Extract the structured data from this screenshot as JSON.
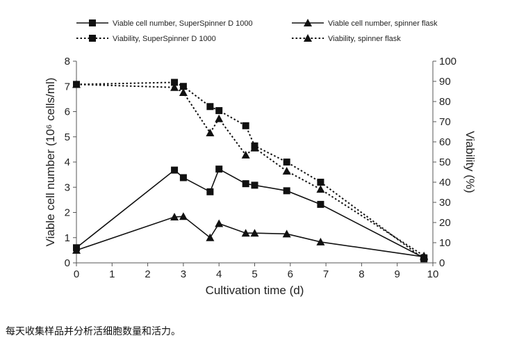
{
  "chart_data": {
    "type": "line",
    "xlabel": "Cultivation time (d)",
    "ylabel": "Viable cell number (10⁶ cells/ml)",
    "y2label": "Viability (%)",
    "xlim": [
      0,
      10
    ],
    "ylim": [
      0,
      8
    ],
    "y2lim": [
      0,
      100
    ],
    "xticks": [
      0,
      1,
      2,
      3,
      4,
      5,
      6,
      7,
      8,
      9,
      10
    ],
    "yticks": [
      0,
      1,
      2,
      3,
      4,
      5,
      6,
      7,
      8
    ],
    "y2ticks": [
      0,
      10,
      20,
      30,
      40,
      50,
      60,
      70,
      80,
      90,
      100
    ],
    "grid": false,
    "legend_position": "top",
    "series": [
      {
        "name": "Viable cell number, SuperSpinner D 1000",
        "axis": "left",
        "marker": "square",
        "line": "solid",
        "x": [
          0,
          2.75,
          3,
          3.75,
          4,
          4.75,
          5,
          5.9,
          6.85,
          9.75
        ],
        "y": [
          0.6,
          3.68,
          3.38,
          2.82,
          3.72,
          3.14,
          3.08,
          2.86,
          2.32,
          0.2
        ]
      },
      {
        "name": "Viable cell number, spinner flask",
        "axis": "left",
        "marker": "triangle",
        "line": "solid",
        "x": [
          0,
          2.75,
          3,
          3.75,
          4,
          4.75,
          5,
          5.9,
          6.85,
          9.75
        ],
        "y": [
          0.5,
          1.82,
          1.84,
          1.0,
          1.56,
          1.18,
          1.18,
          1.15,
          0.83,
          0.24
        ]
      },
      {
        "name": "Viability, SuperSpinner D 1000",
        "axis": "right",
        "marker": "square",
        "line": "dotted",
        "x": [
          0,
          2.75,
          3,
          3.75,
          4,
          4.75,
          5,
          5.9,
          6.85,
          9.75
        ],
        "y": [
          88.5,
          89.5,
          87.5,
          77.5,
          75.5,
          68,
          58,
          50,
          40,
          2
        ]
      },
      {
        "name": "Viability, spinner flask",
        "axis": "right",
        "marker": "triangle",
        "line": "dotted",
        "x": [
          0,
          2.75,
          3,
          3.75,
          4,
          4.75,
          5,
          5.9,
          6.85,
          9.75
        ],
        "y": [
          88.5,
          87,
          84.5,
          64.5,
          71.5,
          53.5,
          57,
          45.5,
          36.5,
          3.5
        ]
      }
    ]
  },
  "caption": "每天收集样品并分析活细胞数量和活力。"
}
